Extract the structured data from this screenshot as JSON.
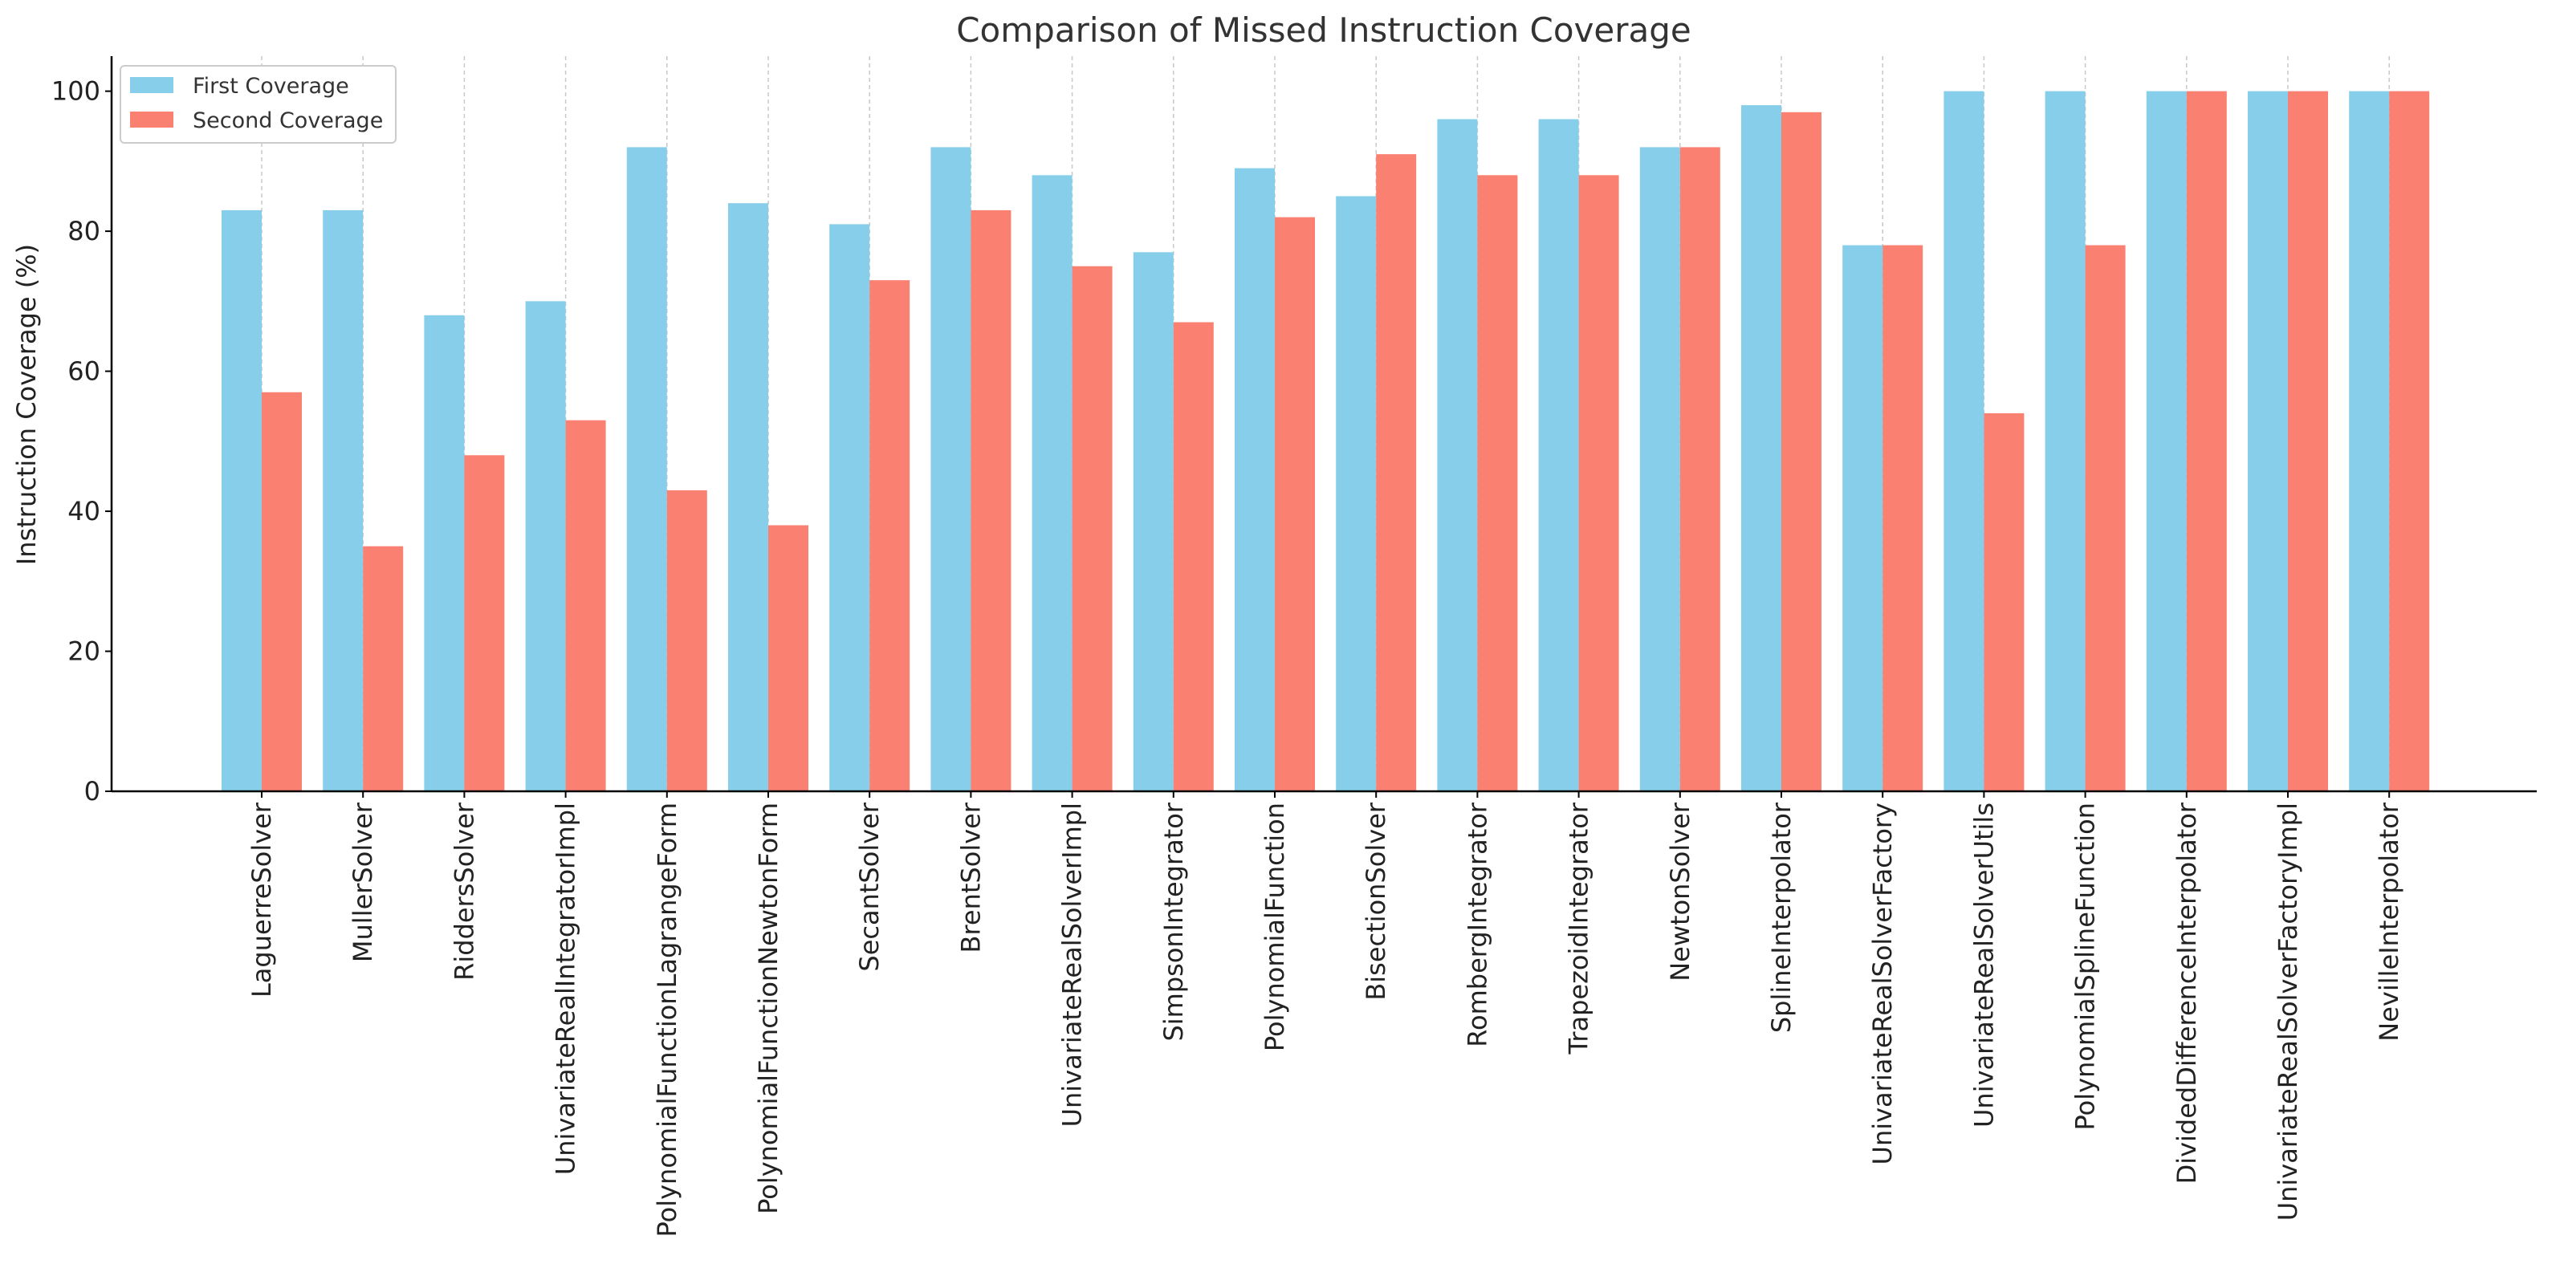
{
  "chart_data": {
    "type": "bar",
    "title": "Comparison of Missed Instruction Coverage",
    "xlabel": "",
    "ylabel": "Instruction Coverage (%)",
    "ylim": [
      0,
      105
    ],
    "yticks": [
      0,
      20,
      40,
      60,
      80,
      100
    ],
    "grid": "vertical dashed",
    "legend_position": "top-left",
    "categories": [
      "LaguerreSolver",
      "MullerSolver",
      "RiddersSolver",
      "UnivariateRealIntegratorImpl",
      "PolynomialFunctionLagrangeForm",
      "PolynomialFunctionNewtonForm",
      "SecantSolver",
      "BrentSolver",
      "UnivariateRealSolverImpl",
      "SimpsonIntegrator",
      "PolynomialFunction",
      "BisectionSolver",
      "RombergIntegrator",
      "TrapezoidIntegrator",
      "NewtonSolver",
      "SplineInterpolator",
      "UnivariateRealSolverFactory",
      "UnivariateRealSolverUtils",
      "PolynomialSplineFunction",
      "DividedDifferenceInterpolator",
      "UnivariateRealSolverFactoryImpl",
      "NevilleInterpolator"
    ],
    "series": [
      {
        "name": "First Coverage",
        "color": "#87CEEB",
        "values": [
          83,
          83,
          68,
          70,
          92,
          84,
          81,
          92,
          88,
          77,
          89,
          85,
          96,
          96,
          92,
          98,
          78,
          100,
          100,
          100,
          100,
          100
        ]
      },
      {
        "name": "Second Coverage",
        "color": "#FA8072",
        "values": [
          57,
          35,
          48,
          53,
          43,
          38,
          73,
          83,
          75,
          67,
          82,
          91,
          88,
          88,
          92,
          97,
          78,
          54,
          78,
          100,
          100,
          100
        ]
      }
    ]
  }
}
